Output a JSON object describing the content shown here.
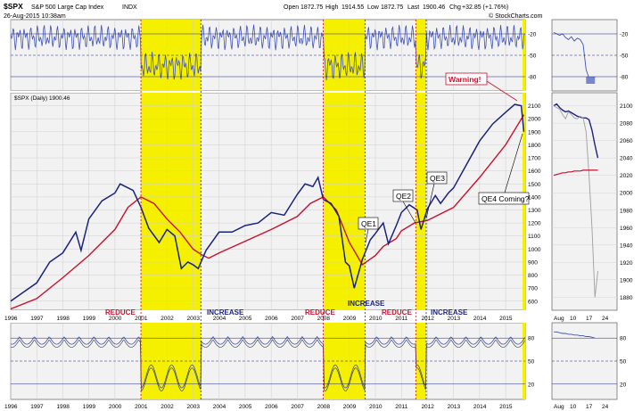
{
  "header": {
    "symbol": "$SPX",
    "name": "S&P 500 Large Cap Index",
    "exchange": "INDX",
    "date": "26-Aug-2015 10:38am",
    "open_label": "Open",
    "open": "1872.75",
    "high_label": "High",
    "high": "1914.55",
    "low_label": "Low",
    "low": "1872.75",
    "last_label": "Last",
    "last": "1900.46",
    "chg_label": "Chg",
    "chg": "+32.85 (+1.76%)",
    "brand": "© StockCharts.com"
  },
  "colors": {
    "price": "#1a237e",
    "ma": "#c8102e",
    "highlight": "#f5f000",
    "reduce": "#c8102e",
    "increase": "#1a237e",
    "indicator": "#3f51b5",
    "grey_line": "#9e9e9e"
  },
  "chart_data": [
    {
      "type": "line",
      "panel": "top-indicator",
      "y_ticks": [
        "-20",
        "-50",
        "-80"
      ],
      "ylim": [
        -100,
        0
      ]
    },
    {
      "type": "line",
      "panel": "price",
      "legend": "$SPX (Daily) 1900.46",
      "x_ticks": [
        "1996",
        "1997",
        "1998",
        "1999",
        "2000",
        "2001",
        "2002",
        "2003",
        "2004",
        "2005",
        "2006",
        "2007",
        "2008",
        "2009",
        "2010",
        "2011",
        "2012",
        "2013",
        "2014",
        "2015"
      ],
      "y_ticks": [
        "600",
        "700",
        "800",
        "900",
        "1000",
        "1100",
        "1200",
        "1300",
        "1400",
        "1500",
        "1600",
        "1700",
        "1800",
        "1900",
        "2000",
        "2100"
      ],
      "ylim": [
        530,
        2200
      ],
      "xlim": [
        1996.0,
        2015.75
      ],
      "series": [
        {
          "role": "price",
          "x": [
            1996.0,
            1996.5,
            1997.0,
            1997.5,
            1998.0,
            1998.5,
            1998.7,
            1999.0,
            1999.5,
            2000.0,
            2000.2,
            2000.7,
            2001.0,
            2001.3,
            2001.7,
            2002.0,
            2002.3,
            2002.55,
            2002.8,
            2003.0,
            2003.2,
            2003.5,
            2004.0,
            2004.5,
            2005.0,
            2005.5,
            2006.0,
            2006.5,
            2007.0,
            2007.3,
            2007.6,
            2007.8,
            2008.0,
            2008.3,
            2008.6,
            2008.85,
            2009.0,
            2009.19,
            2009.5,
            2009.8,
            2010.0,
            2010.3,
            2010.5,
            2010.8,
            2011.0,
            2011.3,
            2011.6,
            2011.75,
            2012.0,
            2012.3,
            2012.5,
            2012.8,
            2013.0,
            2013.5,
            2014.0,
            2014.5,
            2015.0,
            2015.35,
            2015.6,
            2015.7
          ],
          "values": [
            600,
            670,
            740,
            900,
            970,
            1130,
            990,
            1230,
            1370,
            1430,
            1500,
            1450,
            1320,
            1160,
            1050,
            1150,
            1100,
            850,
            900,
            880,
            850,
            990,
            1130,
            1130,
            1180,
            1200,
            1280,
            1260,
            1420,
            1500,
            1480,
            1550,
            1380,
            1350,
            1250,
            900,
            870,
            700,
            920,
            1070,
            1120,
            1200,
            1040,
            1180,
            1280,
            1340,
            1300,
            1150,
            1310,
            1410,
            1350,
            1430,
            1470,
            1650,
            1830,
            1960,
            2050,
            2110,
            2100,
            1900
          ]
        },
        {
          "role": "moving-average",
          "x": [
            1996.0,
            1997.0,
            1998.0,
            1999.0,
            2000.0,
            2000.5,
            2001.0,
            2001.5,
            2002.0,
            2002.5,
            2003.0,
            2003.3,
            2003.6,
            2004.0,
            2005.0,
            2006.0,
            2007.0,
            2007.5,
            2008.0,
            2008.5,
            2009.0,
            2009.5,
            2010.0,
            2010.3,
            2010.8,
            2011.0,
            2011.5,
            2012.0,
            2012.5,
            2013.0,
            2014.0,
            2015.0,
            2015.7
          ],
          "values": [
            540,
            620,
            780,
            950,
            1150,
            1320,
            1400,
            1350,
            1230,
            1130,
            1000,
            960,
            930,
            970,
            1060,
            1150,
            1250,
            1350,
            1400,
            1300,
            1050,
            880,
            950,
            1020,
            1080,
            1140,
            1200,
            1220,
            1270,
            1320,
            1550,
            1800,
            2030
          ]
        }
      ]
    },
    {
      "type": "line",
      "panel": "bottom-indicator",
      "y_ticks": [
        "80",
        "50",
        "20"
      ],
      "ylim": [
        0,
        100
      ]
    },
    {
      "type": "line",
      "panel": "right-zoom",
      "x_ticks": [
        "Aug",
        "10",
        "17",
        "24"
      ],
      "y_ticks": [
        "2100",
        "2080",
        "2060",
        "2040",
        "2020",
        "2000",
        "1980",
        "1960",
        "1940",
        "1920",
        "1900",
        "1880"
      ],
      "ylim": [
        1865,
        2115
      ]
    }
  ],
  "labels": {
    "reduce": "REDUCE",
    "increase": "INCREASE",
    "qe1": "QE1",
    "qe2": "QE2",
    "qe3": "QE3",
    "qe4": "QE4 Coming?",
    "warning": "Warning!"
  }
}
